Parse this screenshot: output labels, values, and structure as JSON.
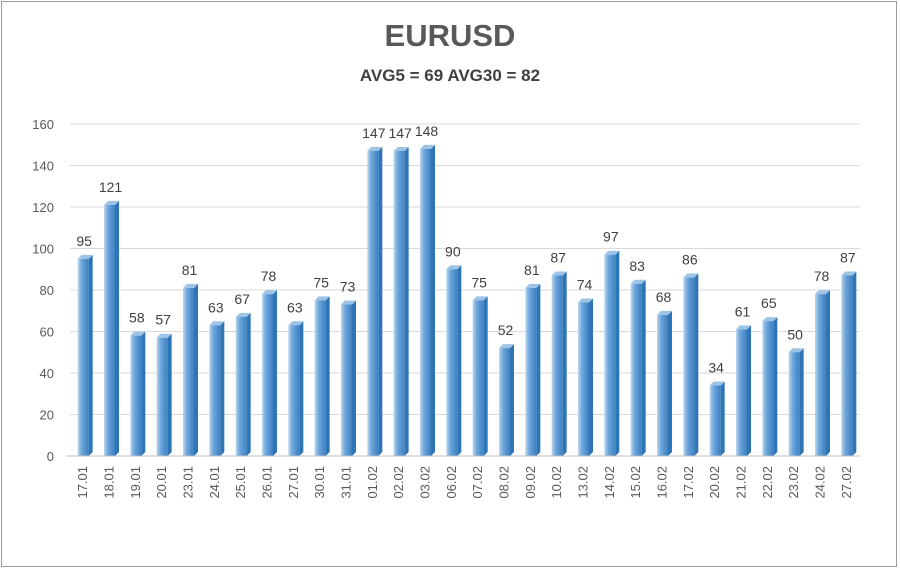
{
  "chart_data": {
    "type": "bar",
    "title": "EURUSD",
    "subtitle": "AVG5 = 69 AVG30 = 82",
    "categories": [
      "17.01",
      "18.01",
      "19.01",
      "20.01",
      "23.01",
      "24.01",
      "25.01",
      "26.01",
      "27.01",
      "30.01",
      "31.01",
      "01.02",
      "02.02",
      "03.02",
      "06.02",
      "07.02",
      "08.02",
      "09.02",
      "10.02",
      "13.02",
      "14.02",
      "15.02",
      "16.02",
      "17.02",
      "20.02",
      "21.02",
      "22.02",
      "23.02",
      "24.02",
      "27.02"
    ],
    "values": [
      95,
      121,
      58,
      57,
      81,
      63,
      67,
      78,
      63,
      75,
      73,
      147,
      147,
      148,
      90,
      75,
      52,
      81,
      87,
      74,
      97,
      83,
      68,
      86,
      34,
      61,
      65,
      50,
      78,
      87
    ],
    "ylim": [
      0,
      160
    ],
    "yticks": [
      0,
      20,
      40,
      60,
      80,
      100,
      120,
      140,
      160
    ],
    "grid": true,
    "data_labels": true,
    "legend": "none",
    "colors": {
      "bar": "#5b9bd5",
      "bar_light": "#9dc3e6",
      "bar_dark": "#2e75b6",
      "grid": "#d9d9d9"
    }
  }
}
